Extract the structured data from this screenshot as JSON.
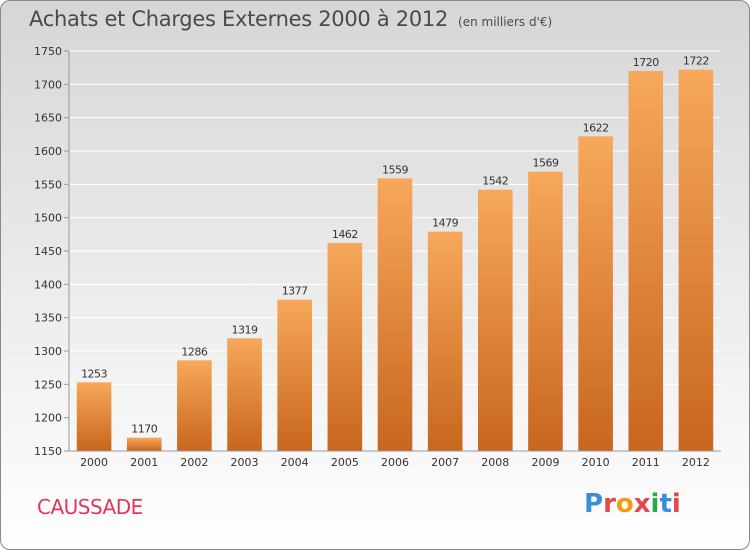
{
  "header": {
    "title": "Achats et Charges Externes 2000 à 2012",
    "unit": "(en milliers d'€)"
  },
  "footer": {
    "commune": "CAUSSADE",
    "logo": {
      "text": "Proxiti",
      "colors": [
        "#3a8fd9",
        "#e04a4a",
        "#f39c12",
        "#e04a4a",
        "#2ba84a",
        "#3a8fd9",
        "#e04a4a"
      ]
    }
  },
  "colors": {
    "bar_light": "#f7a85a",
    "bar_dark": "#c8661e",
    "grid": "#ffffff",
    "axis_text": "#333333"
  },
  "chart_data": {
    "type": "bar",
    "title": "Achats et Charges Externes 2000 à 2012",
    "subtitle": "(en milliers d'€)",
    "categories": [
      "2000",
      "2001",
      "2002",
      "2003",
      "2004",
      "2005",
      "2006",
      "2007",
      "2008",
      "2009",
      "2010",
      "2011",
      "2012"
    ],
    "values": [
      1253,
      1170,
      1286,
      1319,
      1377,
      1462,
      1559,
      1479,
      1542,
      1569,
      1622,
      1720,
      1722
    ],
    "ylim": [
      1150,
      1750
    ],
    "yticks": [
      1150,
      1200,
      1250,
      1300,
      1350,
      1400,
      1450,
      1500,
      1550,
      1600,
      1650,
      1700,
      1750
    ],
    "xlabel": "",
    "ylabel": "",
    "grid": true,
    "data_labels": true
  }
}
